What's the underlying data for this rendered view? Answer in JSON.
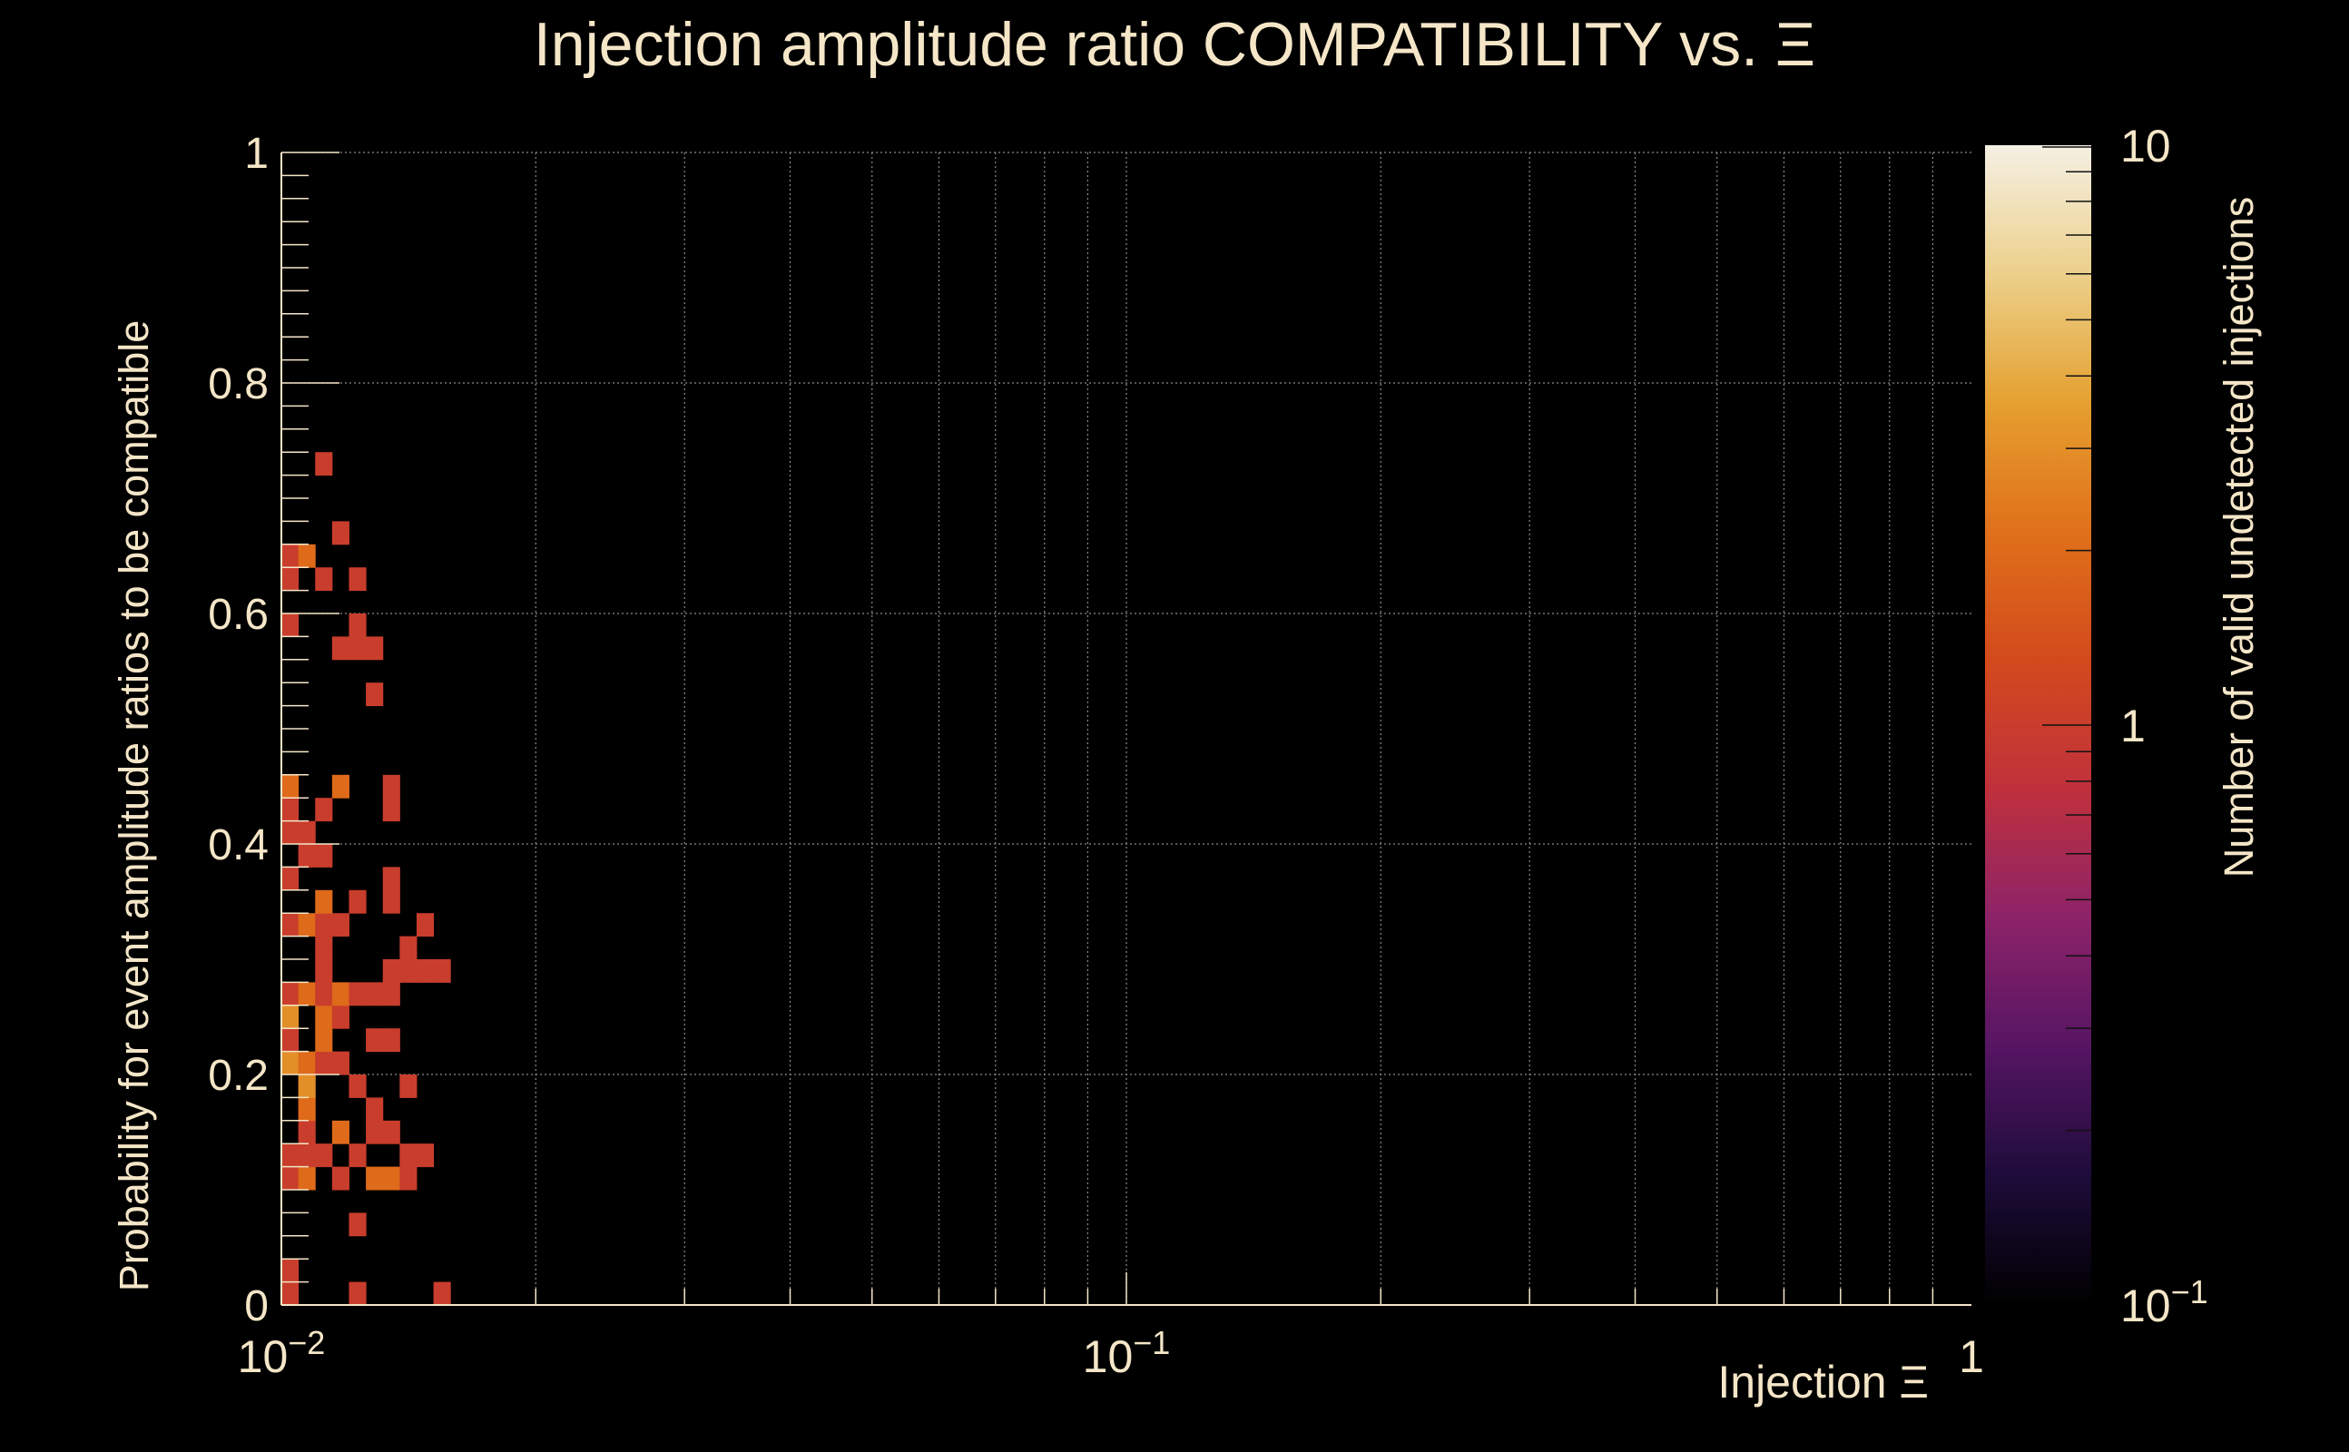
{
  "chart_data": {
    "type": "heatmap",
    "title": "Injection amplitude ratio COMPATIBILITY vs.  Ξ",
    "xlabel": "Injection Ξ",
    "ylabel": "Probability for event amplitude ratios to be compatible",
    "zlabel": "Number of valid undetected injections",
    "x_scale": "log",
    "xlim": [
      0.01,
      1
    ],
    "ylim": [
      0,
      1
    ],
    "z_scale": "log",
    "zlim": [
      0.1,
      10
    ],
    "grid": true,
    "x_tick_labels": [
      {
        "value": 0.01,
        "base": "10",
        "exp": "−2"
      },
      {
        "value": 0.1,
        "base": "10",
        "exp": "−1"
      },
      {
        "value": 1,
        "base": "1",
        "exp": ""
      }
    ],
    "y_tick_labels": [
      "0",
      "0.2",
      "0.4",
      "0.6",
      "0.8",
      "1"
    ],
    "z_tick_labels": [
      {
        "value": 0.1,
        "base": "10",
        "exp": "−1"
      },
      {
        "value": 1,
        "base": "1",
        "exp": ""
      },
      {
        "value": 10,
        "base": "10",
        "exp": ""
      }
    ],
    "x_bins": {
      "min": 0.01,
      "max": 1,
      "count": 100
    },
    "y_bins": {
      "min": 0,
      "max": 1,
      "count": 50
    },
    "colorscale": [
      "#000000",
      "#1d0c3a",
      "#561563",
      "#8c2369",
      "#c0303c",
      "#d24a1c",
      "#e0701a",
      "#e5a030",
      "#ecd08a",
      "#f5f0e4"
    ],
    "cells": [
      [
        0,
        0,
        1
      ],
      [
        0,
        1,
        1
      ],
      [
        4,
        0,
        1
      ],
      [
        9,
        0,
        1
      ],
      [
        4,
        3,
        1
      ],
      [
        0,
        5,
        1
      ],
      [
        1,
        5,
        2
      ],
      [
        3,
        5,
        1
      ],
      [
        5,
        5,
        2
      ],
      [
        6,
        5,
        2
      ],
      [
        7,
        5,
        1
      ],
      [
        0,
        6,
        1
      ],
      [
        1,
        6,
        1
      ],
      [
        2,
        6,
        1
      ],
      [
        4,
        6,
        1
      ],
      [
        7,
        6,
        1
      ],
      [
        8,
        6,
        1
      ],
      [
        1,
        7,
        1
      ],
      [
        3,
        7,
        2
      ],
      [
        5,
        7,
        1
      ],
      [
        6,
        7,
        1
      ],
      [
        1,
        8,
        2
      ],
      [
        5,
        8,
        1
      ],
      [
        1,
        9,
        3
      ],
      [
        4,
        9,
        1
      ],
      [
        7,
        9,
        1
      ],
      [
        0,
        10,
        3
      ],
      [
        1,
        10,
        2
      ],
      [
        2,
        10,
        1
      ],
      [
        3,
        10,
        1
      ],
      [
        0,
        11,
        1
      ],
      [
        2,
        11,
        2
      ],
      [
        5,
        11,
        1
      ],
      [
        6,
        11,
        1
      ],
      [
        0,
        12,
        3
      ],
      [
        2,
        12,
        2
      ],
      [
        3,
        12,
        1
      ],
      [
        0,
        13,
        1
      ],
      [
        1,
        13,
        2
      ],
      [
        2,
        13,
        1
      ],
      [
        3,
        13,
        2
      ],
      [
        4,
        13,
        1
      ],
      [
        5,
        13,
        1
      ],
      [
        6,
        13,
        1
      ],
      [
        2,
        14,
        1
      ],
      [
        6,
        14,
        1
      ],
      [
        7,
        14,
        1
      ],
      [
        8,
        14,
        1
      ],
      [
        9,
        14,
        1
      ],
      [
        2,
        15,
        1
      ],
      [
        7,
        15,
        1
      ],
      [
        0,
        16,
        1
      ],
      [
        1,
        16,
        2
      ],
      [
        2,
        16,
        1
      ],
      [
        3,
        16,
        1
      ],
      [
        8,
        16,
        1
      ],
      [
        2,
        17,
        2
      ],
      [
        4,
        17,
        1
      ],
      [
        6,
        17,
        1
      ],
      [
        0,
        18,
        1
      ],
      [
        6,
        18,
        1
      ],
      [
        1,
        19,
        1
      ],
      [
        2,
        19,
        1
      ],
      [
        0,
        20,
        1
      ],
      [
        1,
        20,
        1
      ],
      [
        0,
        21,
        1
      ],
      [
        2,
        21,
        1
      ],
      [
        6,
        21,
        1
      ],
      [
        0,
        22,
        2
      ],
      [
        3,
        22,
        2
      ],
      [
        6,
        22,
        1
      ],
      [
        5,
        26,
        1
      ],
      [
        3,
        28,
        1
      ],
      [
        4,
        28,
        1
      ],
      [
        5,
        28,
        1
      ],
      [
        0,
        29,
        1
      ],
      [
        4,
        29,
        1
      ],
      [
        0,
        31,
        1
      ],
      [
        2,
        31,
        1
      ],
      [
        4,
        31,
        1
      ],
      [
        0,
        32,
        1
      ],
      [
        1,
        32,
        2
      ],
      [
        3,
        33,
        1
      ],
      [
        2,
        36,
        1
      ]
    ]
  }
}
